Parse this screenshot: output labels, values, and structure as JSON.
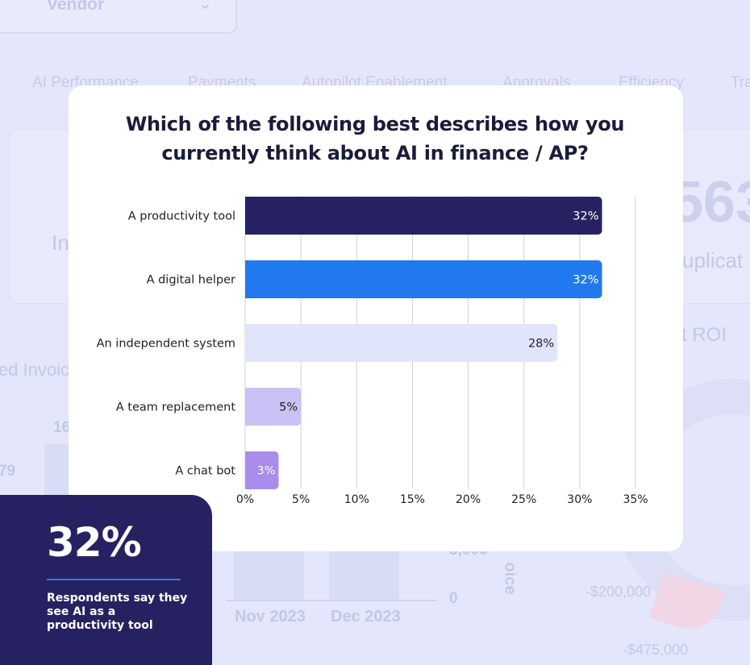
{
  "background": {
    "vendor_label": "Vendor",
    "tabs": [
      "AI Performance",
      "Payments",
      "Autopilot Enablement",
      "Approvals",
      "Efficiency",
      "Tra"
    ],
    "fragments": [
      "In",
      "563",
      "uplicat",
      "t ROI",
      "ed Invoic",
      "16",
      "79",
      "3,000",
      "0",
      "Nov 2023",
      "Dec 2023",
      "oice",
      "-$200,000",
      "-$475,000"
    ]
  },
  "title": "Which of the following best describes how you currently think about AI in finance / AP?",
  "chart_data": {
    "type": "bar",
    "orientation": "horizontal",
    "categories": [
      "A productivity tool",
      "A digital helper",
      "An independent system",
      "A team replacement",
      "A chat bot"
    ],
    "values": [
      32,
      32,
      28,
      5,
      3
    ],
    "value_labels": [
      "32%",
      "32%",
      "28%",
      "5%",
      "3%"
    ],
    "bar_colors": [
      "#262262",
      "#2179ee",
      "#e1e5fc",
      "#cbc1f5",
      "#a98ceb"
    ],
    "label_colors": [
      "#ffffff",
      "#ffffff",
      "#222222",
      "#222222",
      "#ffffff"
    ],
    "xlim": [
      0,
      35
    ],
    "x_ticks": [
      "0%",
      "5%",
      "10%",
      "15%",
      "20%",
      "25%",
      "30%",
      "35%"
    ],
    "grid": true,
    "xlabel": "",
    "ylabel": ""
  },
  "callout": {
    "value": "32%",
    "caption": "Respondents say they see AI as a productivity tool",
    "rule_color": "#2f7df0"
  }
}
